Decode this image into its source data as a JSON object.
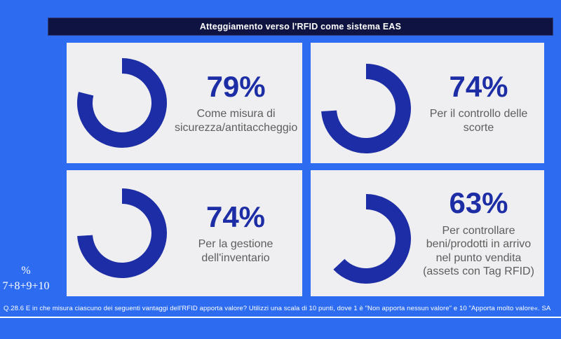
{
  "slide": {
    "title": "Atteggiamento verso l'RFID come sistema EAS",
    "base_note": {
      "line1": "%",
      "line2": "7+8+9+10"
    },
    "footnote": "Q.28.6 E in che misura ciascuno dei seguenti vantaggi dell'RFID apporta valore? Utilizzi una scala di 10 punti, dove 1 è \"Non apporta nessun valore\" e 10 \"Apporta molto valore«. SA",
    "colors": {
      "background": "#2d6cf1",
      "title_bar_bg": "#0e1342",
      "card_bg": "#efeff1",
      "accent_blue": "#1c2da5",
      "description_gray": "#5d5d5d",
      "text_white": "#ffffff"
    }
  },
  "chart_data": {
    "type": "pie",
    "variant": "donut-grid",
    "title": "Atteggiamento verso l'RFID come sistema EAS",
    "unit": "%",
    "base_definition": "% 7+8+9+10",
    "legend_position": "none",
    "items": [
      {
        "label": "Come misura di sicurezza/antitaccheggio",
        "value": 79,
        "display": "79%"
      },
      {
        "label": "Per il controllo delle scorte",
        "value": 74,
        "display": "74%"
      },
      {
        "label": "Per la gestione dell'inventario",
        "value": 74,
        "display": "74%"
      },
      {
        "label": "Per controllare beni/prodotti in arrivo nel punto vendita (assets con Tag RFID)",
        "value": 63,
        "display": "63%"
      }
    ]
  }
}
